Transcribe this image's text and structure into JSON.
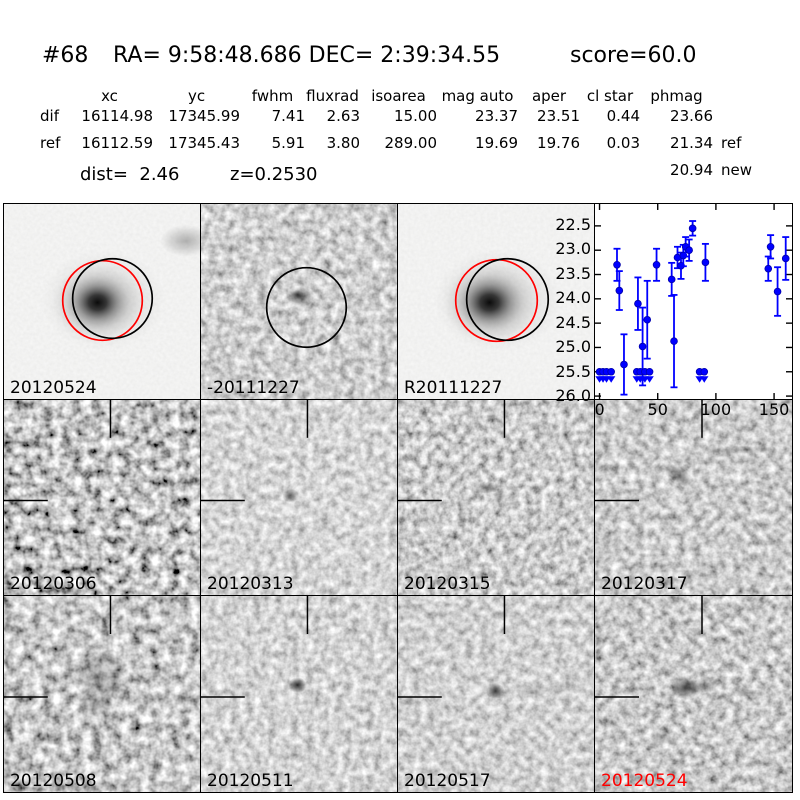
{
  "header": {
    "id": "#68",
    "ra_dec": "RA= 9:58:48.686 DEC= 2:39:34.55",
    "score": "score=60.0"
  },
  "table": {
    "columns": [
      "xc",
      "yc",
      "fwhm",
      "fluxrad",
      "isoarea",
      "mag auto",
      "aper",
      "cl star",
      "phmag"
    ],
    "rows": [
      {
        "label": "dif",
        "values": [
          "16114.98",
          "17345.99",
          "7.41",
          "2.63",
          "15.00",
          "23.37",
          "23.51",
          "0.44",
          "23.66"
        ],
        "suffix": ""
      },
      {
        "label": "ref",
        "values": [
          "16112.59",
          "17345.43",
          "5.91",
          "3.80",
          "289.00",
          "19.69",
          "19.76",
          "0.03",
          "21.34"
        ],
        "suffix": "ref"
      }
    ],
    "extra_phmag": {
      "value": "20.94",
      "suffix": "new"
    },
    "dist_label": "dist=  2.46",
    "z_label": "z=0.2530"
  },
  "stamps": [
    {
      "label": "20120524",
      "label_color": "#000000",
      "kind": "new-image"
    },
    {
      "label": "-20111227",
      "label_color": "#000000",
      "kind": "difference"
    },
    {
      "label": "R20111227",
      "label_color": "#000000",
      "kind": "reference"
    },
    {
      "label": "",
      "label_color": "#000000",
      "kind": "lightcurve-plot"
    },
    {
      "label": "20120306",
      "label_color": "#000000",
      "kind": "difference"
    },
    {
      "label": "20120313",
      "label_color": "#000000",
      "kind": "difference"
    },
    {
      "label": "20120315",
      "label_color": "#000000",
      "kind": "difference"
    },
    {
      "label": "20120317",
      "label_color": "#000000",
      "kind": "difference"
    },
    {
      "label": "20120508",
      "label_color": "#000000",
      "kind": "difference"
    },
    {
      "label": "20120511",
      "label_color": "#000000",
      "kind": "difference"
    },
    {
      "label": "20120517",
      "label_color": "#000000",
      "kind": "difference"
    },
    {
      "label": "20120524",
      "label_color": "#ff0000",
      "kind": "difference-current"
    }
  ],
  "chart_data": {
    "type": "scatter",
    "title": "",
    "xlabel": "",
    "ylabel": "",
    "xlim": [
      -3.9,
      165.4
    ],
    "ylim": [
      22.05,
      26.06
    ],
    "y_inverted": true,
    "x_ticks": [
      0,
      50,
      100,
      150
    ],
    "y_ticks": [
      22.5,
      23.0,
      23.5,
      24.0,
      24.5,
      25.0,
      25.5,
      26.0
    ],
    "marker_color": "#0000ff",
    "series": [
      {
        "name": "detections",
        "points": [
          [
            15,
            23.3,
            0.33
          ],
          [
            17,
            23.83,
            0.4
          ],
          [
            21,
            25.35,
            0.62
          ],
          [
            33,
            24.1,
            0.54
          ],
          [
            37,
            24.98,
            0.8
          ],
          [
            41,
            24.43,
            0.8
          ],
          [
            49,
            23.3,
            0.33
          ],
          [
            62,
            23.6,
            0.34
          ],
          [
            64,
            24.87,
            0.95
          ],
          [
            67,
            23.15,
            0.22
          ],
          [
            70,
            23.32,
            0.27
          ],
          [
            72,
            23.11,
            0.22
          ],
          [
            74,
            22.93,
            0.2
          ],
          [
            77,
            23.0,
            0.22
          ],
          [
            80,
            22.55,
            0.15
          ],
          [
            91,
            23.25,
            0.38
          ],
          [
            145,
            23.38,
            0.25
          ],
          [
            147,
            22.93,
            0.24
          ],
          [
            153,
            23.85,
            0.5
          ],
          [
            160,
            23.17,
            0.44
          ]
        ]
      },
      {
        "name": "upper-limits",
        "limit_mag": 25.5,
        "x": [
          0,
          3,
          6,
          10,
          32,
          35,
          39,
          43,
          86,
          90
        ]
      }
    ]
  }
}
